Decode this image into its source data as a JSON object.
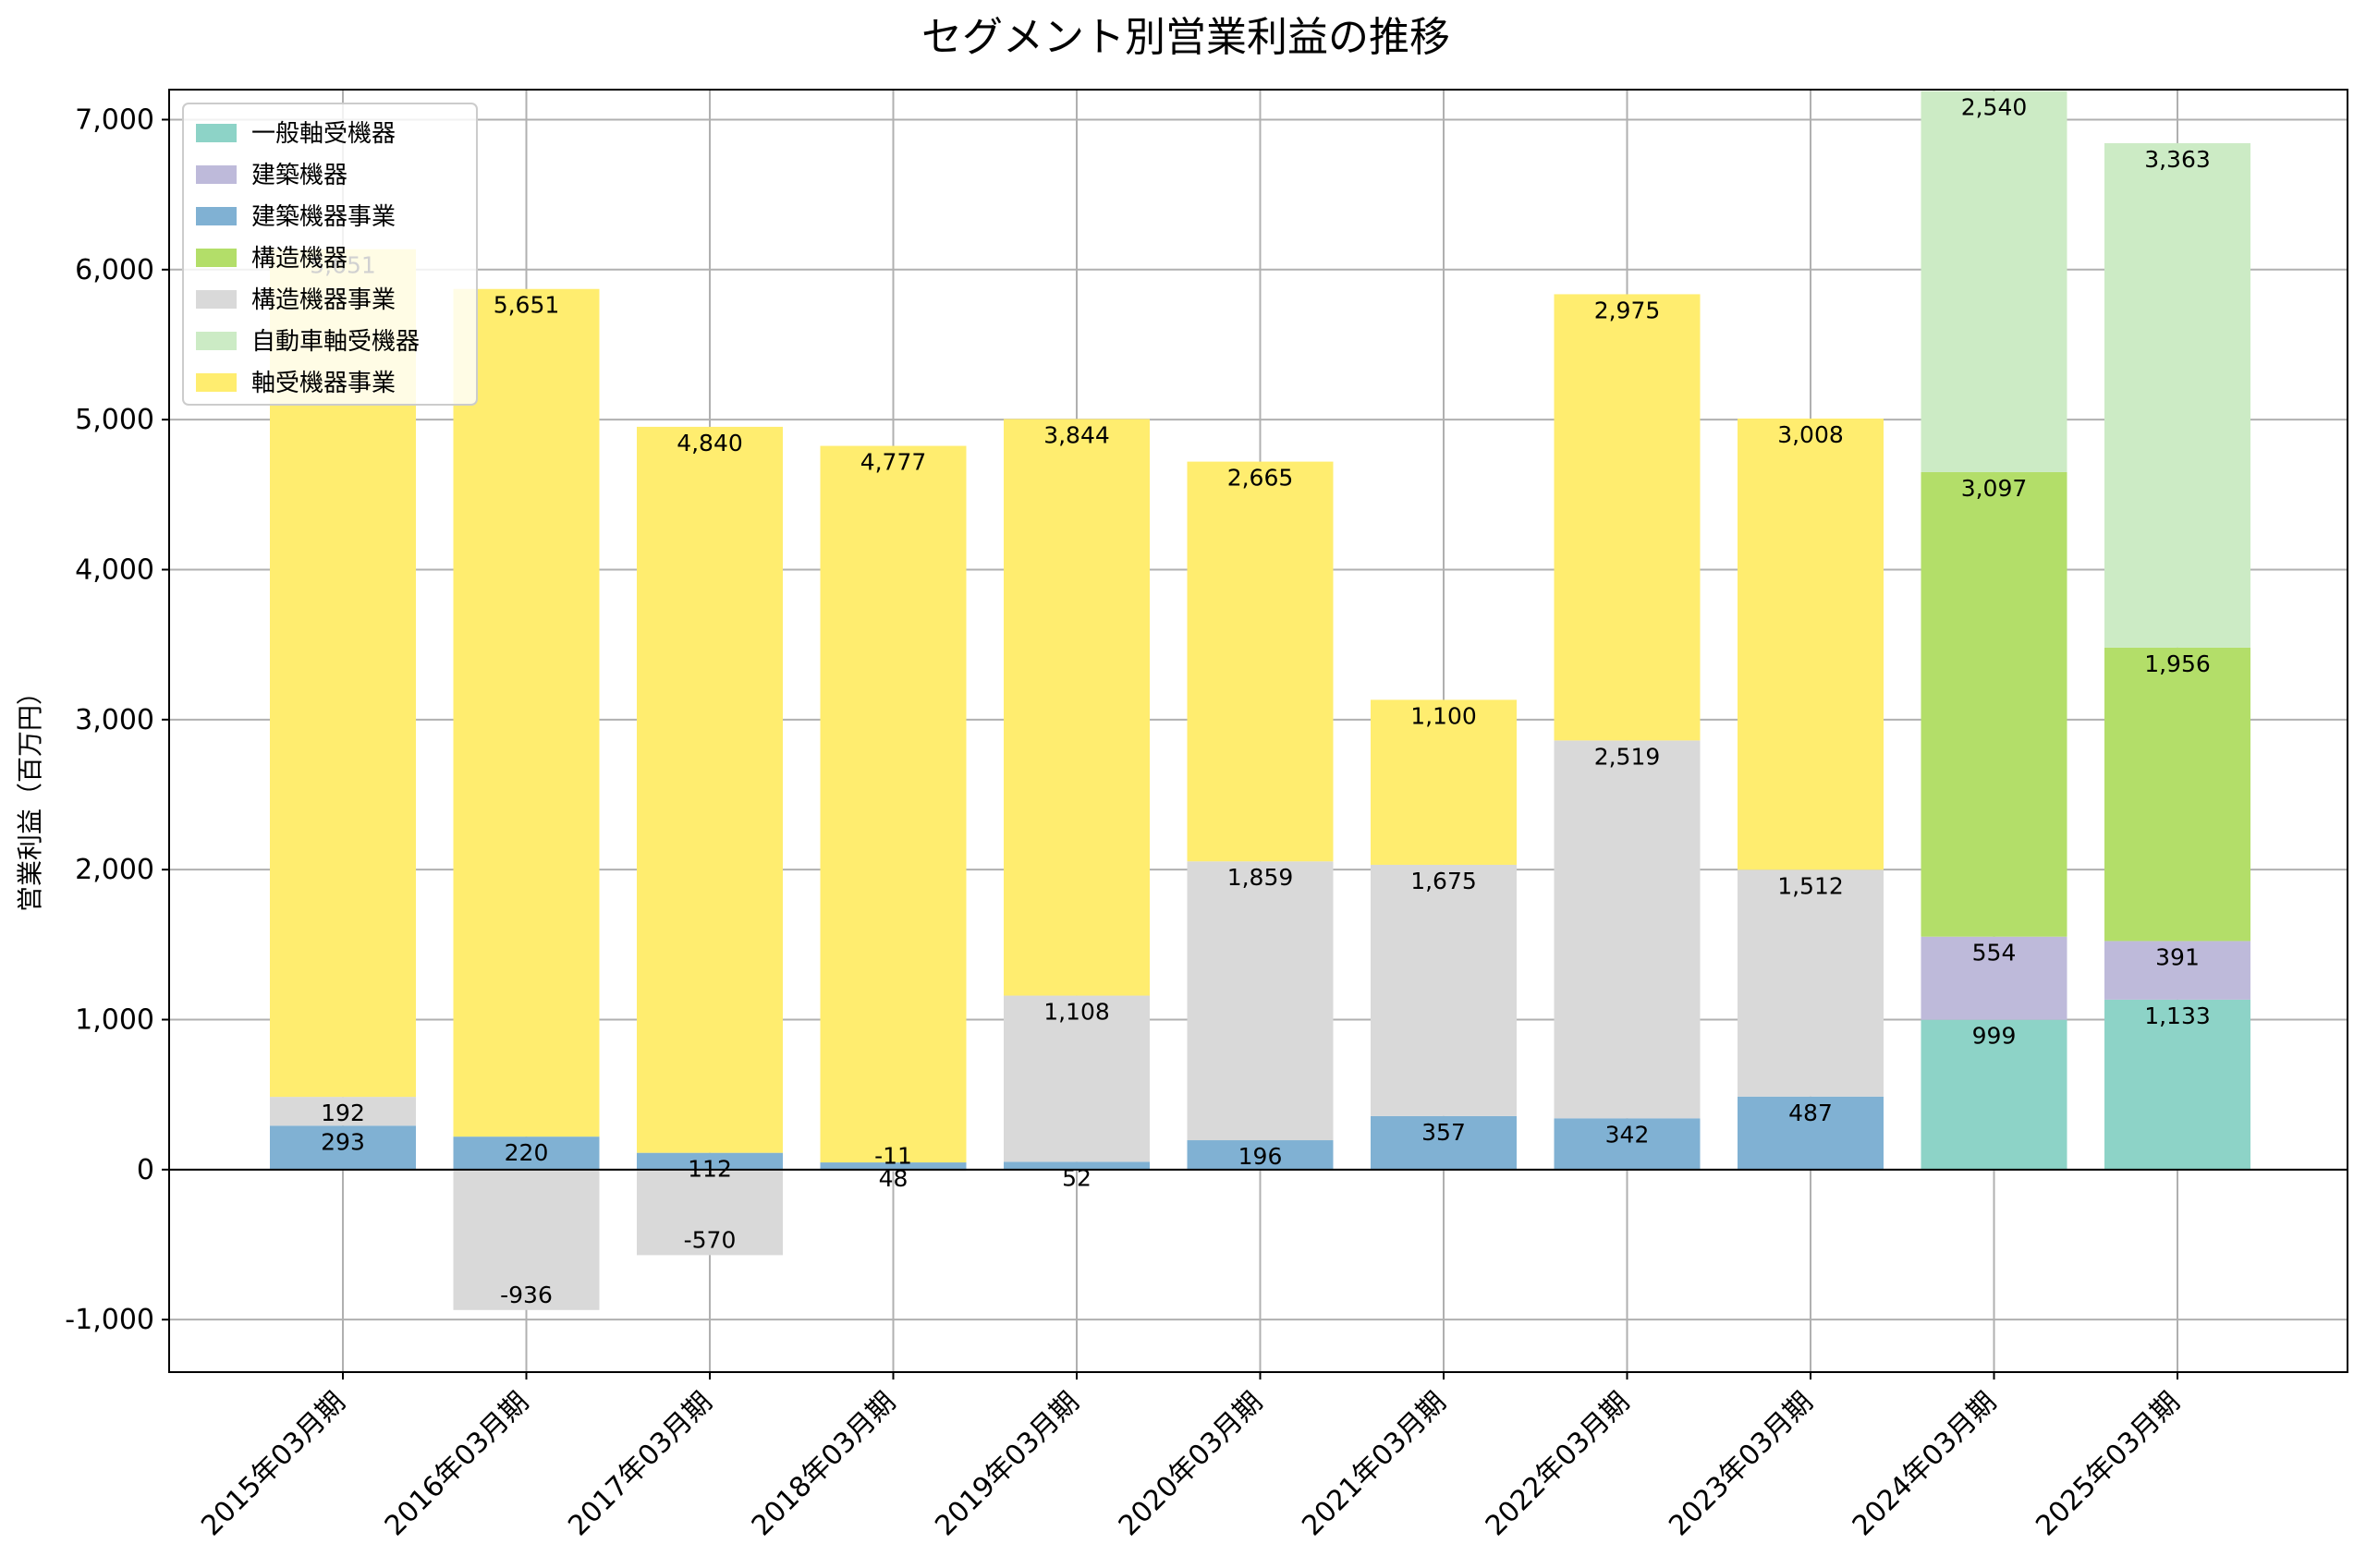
{
  "chart_data": {
    "type": "bar",
    "stacked": true,
    "title": "セグメント別営業利益の推移",
    "ylabel": "営業利益（百万円）",
    "xlabel": "",
    "ylim": [
      -1350,
      7200
    ],
    "yticks": [
      -1000,
      0,
      1000,
      2000,
      3000,
      4000,
      5000,
      6000,
      7000
    ],
    "ytick_labels": [
      "-1,000",
      "0",
      "1,000",
      "2,000",
      "3,000",
      "4,000",
      "5,000",
      "6,000",
      "7,000"
    ],
    "grid": true,
    "legend_position": "top-left",
    "categories": [
      "2015年03月期",
      "2016年03月期",
      "2017年03月期",
      "2018年03月期",
      "2019年03月期",
      "2020年03月期",
      "2021年03月期",
      "2022年03月期",
      "2023年03月期",
      "2024年03月期",
      "2025年03月期"
    ],
    "series": [
      {
        "name": "一般軸受機器",
        "color": "#8dd3c7",
        "values": [
          null,
          null,
          null,
          null,
          null,
          null,
          null,
          null,
          null,
          999,
          1133
        ]
      },
      {
        "name": "建築機器",
        "color": "#bebada",
        "values": [
          null,
          null,
          null,
          null,
          null,
          null,
          null,
          null,
          null,
          554,
          391
        ]
      },
      {
        "name": "建築機器事業",
        "color": "#80b1d3",
        "values": [
          293,
          220,
          112,
          48,
          52,
          196,
          357,
          342,
          487,
          null,
          null
        ]
      },
      {
        "name": "構造機器",
        "color": "#b3de69",
        "values": [
          null,
          null,
          null,
          null,
          null,
          null,
          null,
          null,
          null,
          3097,
          1956
        ]
      },
      {
        "name": "構造機器事業",
        "color": "#d9d9d9",
        "values": [
          192,
          -936,
          -570,
          -11,
          1108,
          1859,
          1675,
          2519,
          1512,
          null,
          null
        ]
      },
      {
        "name": "自動車軸受機器",
        "color": "#ccebc5",
        "values": [
          null,
          null,
          null,
          null,
          null,
          null,
          null,
          null,
          null,
          2540,
          3363
        ]
      },
      {
        "name": "軸受機器事業",
        "color": "#ffed6f",
        "values": [
          5651,
          5651,
          4840,
          4777,
          3844,
          2665,
          1100,
          2975,
          3008,
          null,
          null
        ]
      }
    ]
  }
}
